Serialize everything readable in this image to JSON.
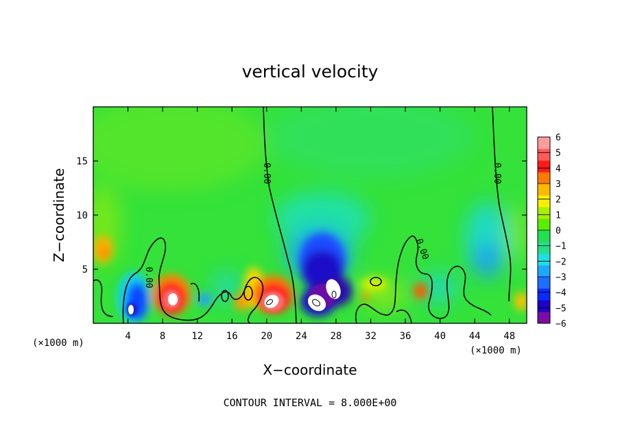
{
  "chart_data": {
    "type": "heatmap",
    "title": "vertical velocity",
    "xlabel": "X−coordinate",
    "ylabel": "Z−coordinate",
    "x_unit_left": "(×1000 m)",
    "x_unit_right": "(×1000 m)",
    "xlim": [
      0,
      50
    ],
    "ylim": [
      0,
      20
    ],
    "xticks": [
      4,
      8,
      12,
      16,
      20,
      24,
      28,
      32,
      36,
      40,
      44,
      48
    ],
    "yticks": [
      5,
      10,
      15
    ],
    "colorbar": {
      "min": -6,
      "max": 6,
      "labels": [
        "6",
        "5",
        "4",
        "3",
        "2",
        "1",
        "0",
        "−1",
        "−2",
        "−3",
        "−4",
        "−5",
        "−6"
      ],
      "colors": [
        "#7a0da8",
        "#1f00c8",
        "#0a2aff",
        "#1f6cff",
        "#1da8ff",
        "#1fe0e0",
        "#20e08c",
        "#22e050",
        "#5aef00",
        "#a8f000",
        "#f6f000",
        "#ffb800",
        "#ff7a00",
        "#ff1a1a",
        "#ff5a5a",
        "#ff9c9c"
      ]
    },
    "zero_contour_label": "0.00",
    "cells": [
      {
        "x": 4.6,
        "z": 1.7,
        "w": -5.5
      },
      {
        "x": 6.0,
        "z": 3.2,
        "w": -3.5
      },
      {
        "x": 8.6,
        "z": 2.3,
        "w": 6.0
      },
      {
        "x": 1.3,
        "z": 6.8,
        "w": 2.5
      },
      {
        "x": 13.0,
        "z": 2.2,
        "w": -2.0
      },
      {
        "x": 20.5,
        "z": 2.3,
        "w": 6.0
      },
      {
        "x": 18.6,
        "z": 3.6,
        "w": 4.0
      },
      {
        "x": 25.5,
        "z": 2.4,
        "w": -6.0
      },
      {
        "x": 27.5,
        "z": 3.3,
        "w": -6.0
      },
      {
        "x": 26.2,
        "z": 5.5,
        "w": -4.0
      },
      {
        "x": 37.8,
        "z": 3.0,
        "w": 4.5
      },
      {
        "x": 44.8,
        "z": 6.5,
        "w": -2.5
      },
      {
        "x": 49.5,
        "z": 2.0,
        "w": 2.5
      }
    ]
  },
  "footer": {
    "contour_interval": "CONTOUR INTERVAL = 8.000E+00"
  }
}
